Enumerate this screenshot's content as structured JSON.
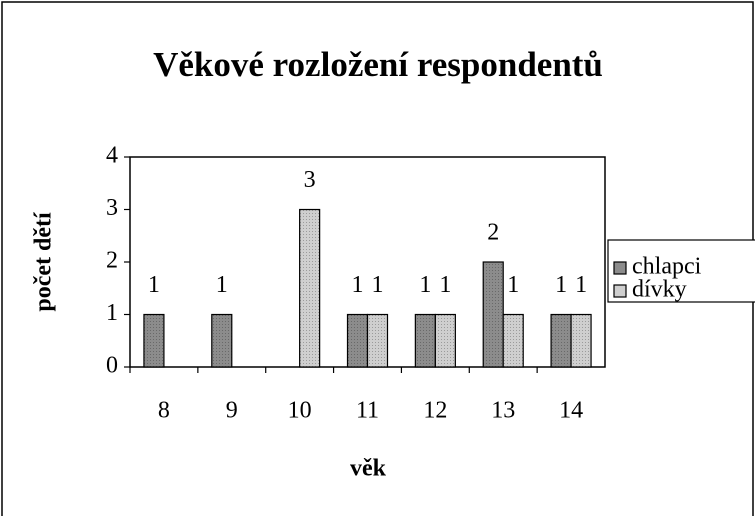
{
  "chart_data": {
    "type": "bar",
    "title": "Věkové rozložení respondentů",
    "x_label": "věk",
    "y_label": "počet dětí",
    "categories": [
      "8",
      "9",
      "10",
      "11",
      "12",
      "13",
      "14"
    ],
    "series": [
      {
        "name": "chlapci",
        "color": "#8c8c8c",
        "values": [
          1,
          1,
          null,
          1,
          1,
          2,
          1
        ]
      },
      {
        "name": "dívky",
        "color": "#cfcfcf",
        "values": [
          null,
          null,
          3,
          1,
          1,
          1,
          1
        ]
      }
    ],
    "ylim": [
      0,
      4
    ],
    "yticks": [
      0,
      1,
      2,
      3,
      4
    ],
    "legend": "right"
  }
}
